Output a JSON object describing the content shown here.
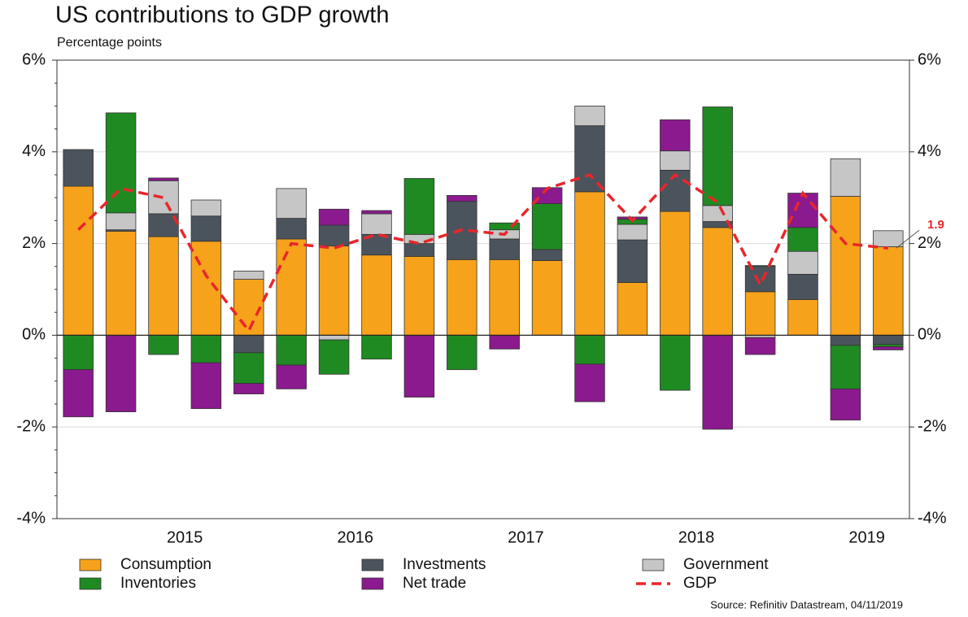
{
  "chart_data": {
    "type": "stacked_bar_line",
    "title": "US contributions to GDP growth",
    "subtitle": "Percentage points",
    "source": "Source: Refinitiv Datastream, 04/11/2019",
    "categories": [
      null,
      null,
      "2015",
      null,
      null,
      null,
      "2016",
      null,
      null,
      null,
      "2017",
      null,
      null,
      null,
      "2018",
      null,
      null,
      null,
      "2019",
      null
    ],
    "series": [
      {
        "name": "Consumption",
        "color": "#f7a21b",
        "kind": "bar",
        "values": [
          3.25,
          2.27,
          2.15,
          2.05,
          1.22,
          2.1,
          1.95,
          1.75,
          1.72,
          1.65,
          1.65,
          1.63,
          3.13,
          1.15,
          2.7,
          2.35,
          0.95,
          0.78,
          3.03,
          1.93
        ]
      },
      {
        "name": "Investments",
        "color": "#4b545c",
        "kind": "bar",
        "values": [
          0.8,
          0.03,
          0.5,
          0.55,
          -0.38,
          0.45,
          0.45,
          0.45,
          0.28,
          1.27,
          0.45,
          0.24,
          1.44,
          0.93,
          0.9,
          0.13,
          0.55,
          0.55,
          -0.22,
          -0.2
        ]
      },
      {
        "name": "Government",
        "color": "#c6c6c6",
        "kind": "bar",
        "values": [
          0,
          0.37,
          0.72,
          0.35,
          0.18,
          0.65,
          -0.1,
          0.45,
          0.2,
          0,
          0.2,
          0,
          0.43,
          0.34,
          0.42,
          0.35,
          -0.05,
          0.5,
          0.82,
          0.35
        ]
      },
      {
        "name": "Inventories",
        "color": "#1f8a22",
        "kind": "bar",
        "values": [
          -0.75,
          2.18,
          -0.42,
          -0.6,
          -0.67,
          -0.65,
          -0.75,
          -0.52,
          1.22,
          -0.75,
          0.15,
          1.0,
          -0.63,
          0.11,
          -1.2,
          2.15,
          0.02,
          0.52,
          -0.95,
          -0.05
        ]
      },
      {
        "name": "Net trade",
        "color": "#8b1a8e",
        "kind": "bar",
        "values": [
          -1.03,
          -1.67,
          0.06,
          -1.0,
          -0.23,
          -0.52,
          0.35,
          0.07,
          -1.35,
          0.13,
          -0.3,
          0.35,
          -0.82,
          0.05,
          0.68,
          -2.05,
          -0.37,
          0.75,
          -0.68,
          -0.07
        ]
      },
      {
        "name": "GDP",
        "color": "#e8262b",
        "kind": "line",
        "values": [
          2.3,
          3.2,
          3.0,
          1.3,
          0.1,
          2.0,
          1.9,
          2.2,
          2.0,
          2.3,
          2.2,
          3.2,
          3.5,
          2.5,
          3.5,
          2.9,
          1.1,
          3.1,
          2.0,
          1.9
        ]
      }
    ],
    "ylim": [
      -4,
      6
    ],
    "yticks": [
      {
        "value": -4,
        "label": "-4%"
      },
      {
        "value": -2,
        "label": "-2%"
      },
      {
        "value": 0,
        "label": "0%"
      },
      {
        "value": 2,
        "label": "2%"
      },
      {
        "value": 4,
        "label": "4%"
      },
      {
        "value": 6,
        "label": "6%"
      }
    ],
    "y2lim": [
      -4,
      6
    ],
    "y2ticks": [
      {
        "value": -4,
        "label": "-4%"
      },
      {
        "value": -2,
        "label": "-2%"
      },
      {
        "value": 0,
        "label": "0%"
      },
      {
        "value": 2,
        "label": "2%"
      },
      {
        "value": 4,
        "label": "4%"
      },
      {
        "value": 6,
        "label": "6%"
      }
    ],
    "grid": true,
    "legend": "bottom"
  }
}
